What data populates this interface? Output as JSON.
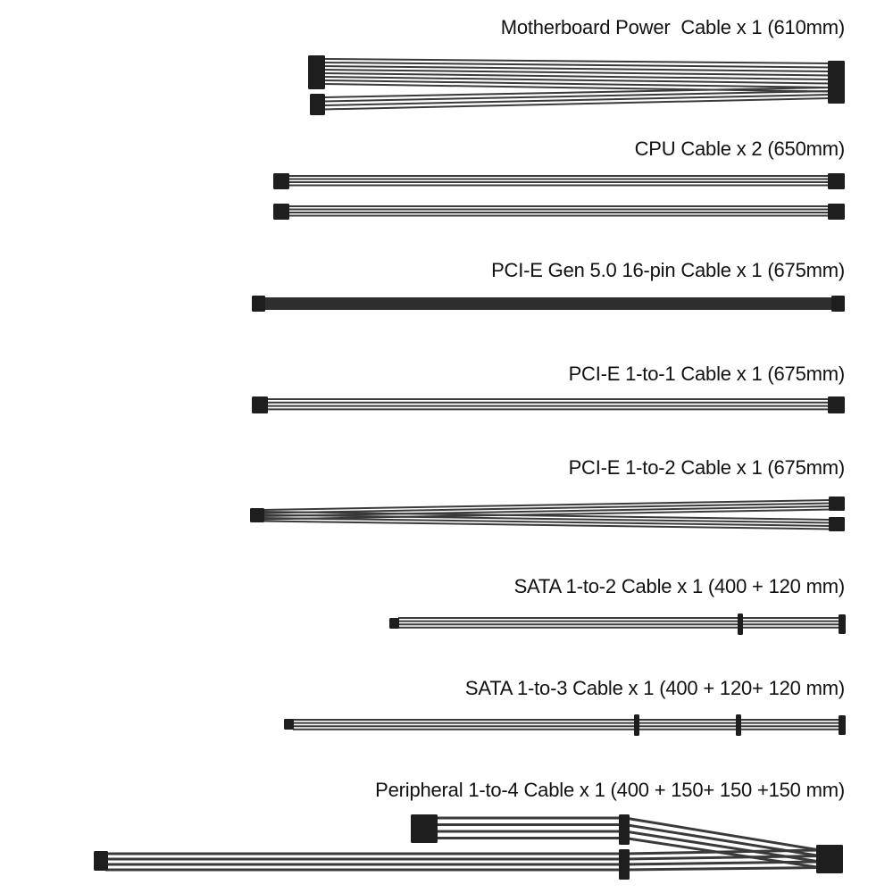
{
  "cables": [
    {
      "label": "Motherboard Power  Cable x 1 (610mm)"
    },
    {
      "label": "CPU Cable x 2 (650mm)"
    },
    {
      "label": "PCI-E Gen 5.0 16-pin Cable x 1 (675mm)"
    },
    {
      "label": "PCI-E 1-to-1 Cable x 1 (675mm)"
    },
    {
      "label": "PCI-E 1-to-2 Cable x 1 (675mm)"
    },
    {
      "label": "SATA 1-to-2 Cable x 1 (400 + 120 mm)"
    },
    {
      "label": "SATA 1-to-3 Cable x 1 (400 + 120+ 120 mm)"
    },
    {
      "label": "Peripheral 1-to-4 Cable x 1 (400 + 150+ 150 +150 mm)"
    }
  ],
  "colors": {
    "wire": "#3a3a3a",
    "connector": "#1e1e1e",
    "text": "#111111",
    "background": "#ffffff"
  }
}
